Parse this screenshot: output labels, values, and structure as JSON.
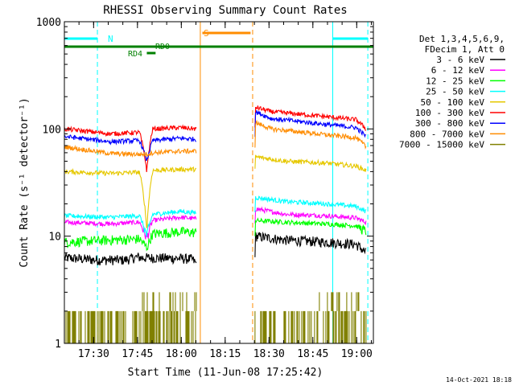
{
  "chart_data": {
    "type": "line",
    "title": "RHESSI Observing Summary Count Rates",
    "xlabel": "Start Time (11-Jun-08 17:25:42)",
    "ylabel": "Count Rate (s⁻¹ detector⁻¹)",
    "y_scale": "log",
    "ylim": [
      1,
      1000
    ],
    "xlim_minutes": [
      -5.7,
      100
    ],
    "x_ticks": [
      {
        "t": 4.3,
        "label": "17:30"
      },
      {
        "t": 19.3,
        "label": "17:45"
      },
      {
        "t": 34.3,
        "label": "18:00"
      },
      {
        "t": 49.3,
        "label": "18:15"
      },
      {
        "t": 64.3,
        "label": "18:30"
      },
      {
        "t": 79.3,
        "label": "18:45"
      },
      {
        "t": 94.3,
        "label": "19:00"
      }
    ],
    "y_ticks": [
      {
        "v": 1,
        "label": "1"
      },
      {
        "v": 10,
        "label": "10"
      },
      {
        "v": 100,
        "label": "100"
      },
      {
        "v": 1000,
        "label": "1000"
      }
    ],
    "legend_header": [
      "Det 1,3,4,5,6,9,",
      "FDecim 1, Att 0"
    ],
    "legend_position": "top-right",
    "series": [
      {
        "name": "3 - 6 keV",
        "color": "#000000",
        "segments": [
          [
            [
              -5.7,
              6.3
            ],
            [
              5,
              6.0
            ],
            [
              15,
              6.0
            ],
            [
              19.5,
              6.4
            ],
            [
              20.5,
              6.3
            ],
            [
              34,
              6.2
            ],
            [
              38,
              6.1
            ],
            [
              39.5,
              5.5
            ]
          ],
          [
            [
              59.5,
              10.0
            ],
            [
              70,
              9.2
            ],
            [
              84,
              8.8
            ],
            [
              94,
              8.4
            ],
            [
              97.5,
              7.0
            ]
          ]
        ]
      },
      {
        "name": "6 - 12 keV",
        "color": "#ff00ff",
        "segments": [
          [
            [
              -5.7,
              13.5
            ],
            [
              10,
              13.0
            ],
            [
              20,
              13.5
            ],
            [
              22.5,
              9.5
            ],
            [
              24.5,
              14.0
            ],
            [
              34,
              15.0
            ],
            [
              39.5,
              14.5
            ]
          ],
          [
            [
              59.5,
              18.0
            ],
            [
              70,
              16.0
            ],
            [
              84,
              15.5
            ],
            [
              94,
              14.8
            ],
            [
              97.5,
              13.5
            ]
          ]
        ]
      },
      {
        "name": "12 - 25 keV",
        "color": "#00ff00",
        "segments": [
          [
            [
              -5.7,
              8.8
            ],
            [
              10,
              9.2
            ],
            [
              20,
              9.4
            ],
            [
              22.5,
              7.8
            ],
            [
              24.5,
              10.5
            ],
            [
              34,
              11.0
            ],
            [
              39.5,
              10.8
            ]
          ],
          [
            [
              59.5,
              14.0
            ],
            [
              70,
              13.5
            ],
            [
              84,
              13.0
            ],
            [
              94,
              12.5
            ],
            [
              97.5,
              11.0
            ]
          ]
        ]
      },
      {
        "name": "25 - 50 keV",
        "color": "#00ffff",
        "segments": [
          [
            [
              -5.7,
              15.5
            ],
            [
              10,
              15.0
            ],
            [
              20,
              15.5
            ],
            [
              22.5,
              10.0
            ],
            [
              24.5,
              16.0
            ],
            [
              34,
              17.0
            ],
            [
              39.5,
              16.5
            ]
          ],
          [
            [
              59.5,
              23.0
            ],
            [
              70,
              21.0
            ],
            [
              84,
              20.0
            ],
            [
              94,
              19.0
            ],
            [
              97.5,
              17.0
            ]
          ]
        ]
      },
      {
        "name": "50 - 100 keV",
        "color": "#e6c800",
        "segments": [
          [
            [
              -5.7,
              40.0
            ],
            [
              10,
              38.5
            ],
            [
              20,
              39.5
            ],
            [
              22.5,
              11.0
            ],
            [
              24.5,
              41.0
            ],
            [
              34,
              42.0
            ],
            [
              39.5,
              42.0
            ]
          ],
          [
            [
              59.5,
              55.0
            ],
            [
              70,
              50.0
            ],
            [
              84,
              48.0
            ],
            [
              94,
              45.0
            ],
            [
              97.5,
              41.0
            ]
          ]
        ]
      },
      {
        "name": "100 - 300 keV",
        "color": "#ff0000",
        "segments": [
          [
            [
              -5.7,
              100.0
            ],
            [
              10,
              90.0
            ],
            [
              20,
              93.0
            ],
            [
              22.5,
              40.0
            ],
            [
              24.5,
              100.0
            ],
            [
              34,
              103.0
            ],
            [
              39.5,
              100.0
            ]
          ],
          [
            [
              59.5,
              160.0
            ],
            [
              65,
              145.0
            ],
            [
              84,
              130.0
            ],
            [
              94,
              122.0
            ],
            [
              97.5,
              100.0
            ]
          ]
        ]
      },
      {
        "name": "300 - 800 keV",
        "color": "#0000ff",
        "segments": [
          [
            [
              -5.7,
              85.0
            ],
            [
              10,
              76.0
            ],
            [
              20,
              78.0
            ],
            [
              22.5,
              50.0
            ],
            [
              24.5,
              78.0
            ],
            [
              34,
              82.0
            ],
            [
              39.5,
              80.0
            ]
          ],
          [
            [
              59.5,
              145.0
            ],
            [
              65,
              125.0
            ],
            [
              84,
              110.0
            ],
            [
              94,
              103.0
            ],
            [
              97.5,
              85.0
            ]
          ]
        ]
      },
      {
        "name": "800 - 7000 keV",
        "color": "#ff8c00",
        "segments": [
          [
            [
              -5.7,
              68.0
            ],
            [
              10,
              59.0
            ],
            [
              20,
              58.0
            ],
            [
              22.5,
              58.0
            ],
            [
              24.5,
              60.0
            ],
            [
              34,
              62.0
            ],
            [
              39.5,
              62.0
            ]
          ],
          [
            [
              59.5,
              115.0
            ],
            [
              65,
              100.0
            ],
            [
              84,
              88.0
            ],
            [
              94,
              83.0
            ],
            [
              97.5,
              68.0
            ]
          ]
        ]
      },
      {
        "name": "7000 - 15000 keV",
        "color": "#808000",
        "segments": [
          [
            [
              -5.7,
              1.8
            ],
            [
              15,
              1.8
            ],
            [
              24,
              2.7
            ],
            [
              39.5,
              3.0
            ]
          ],
          [
            [
              59.5,
              1.8
            ],
            [
              70,
              2.0
            ],
            [
              84,
              2.5
            ],
            [
              94,
              2.7
            ],
            [
              97.5,
              2.0
            ]
          ]
        ]
      }
    ],
    "vlines": [
      {
        "t": -5.7,
        "color": "#00ffff",
        "style": "solid"
      },
      {
        "t": 5.6,
        "color": "#00ffff",
        "style": "dashed"
      },
      {
        "t": 40.8,
        "color": "#ff8c00",
        "style": "solid"
      },
      {
        "t": 58.7,
        "color": "#ff8c00",
        "style": "dashed"
      },
      {
        "t": 86.1,
        "color": "#00ffff",
        "style": "solid"
      },
      {
        "t": 98.1,
        "color": "#00ffff",
        "style": "dashed"
      }
    ],
    "annotations": [
      {
        "text": "N",
        "color": "#00ffff"
      },
      {
        "text": "S",
        "color": "#ff8c00"
      },
      {
        "text": "RD0",
        "color": "#008000"
      },
      {
        "text": "RD4",
        "color": "#008000"
      }
    ],
    "timestamp": "14-Oct-2021 18:18"
  }
}
